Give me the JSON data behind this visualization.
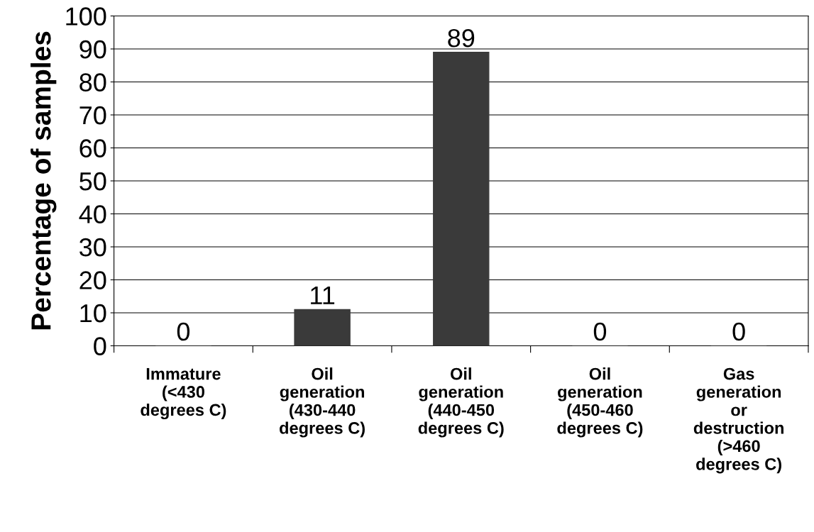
{
  "chart_data": {
    "type": "bar",
    "ylabel": "Percentage of samples",
    "categories": [
      "Immature\n(<430\ndegrees C)",
      "Oil\ngeneration\n(430-440\ndegrees C)",
      "Oil\ngeneration\n(440-450\ndegrees C)",
      "Oil\ngeneration\n(450-460\ndegrees C)",
      "Gas\ngeneration\nor\ndestruction\n(>460\ndegrees C)"
    ],
    "values": [
      0,
      11,
      89,
      0,
      0
    ],
    "color": "#3a3a3a",
    "ylim": [
      0,
      100
    ],
    "yticks": [
      0,
      10,
      20,
      30,
      40,
      50,
      60,
      70,
      80,
      90,
      100
    ],
    "grid": "y",
    "data_labels": true,
    "legend": false
  }
}
